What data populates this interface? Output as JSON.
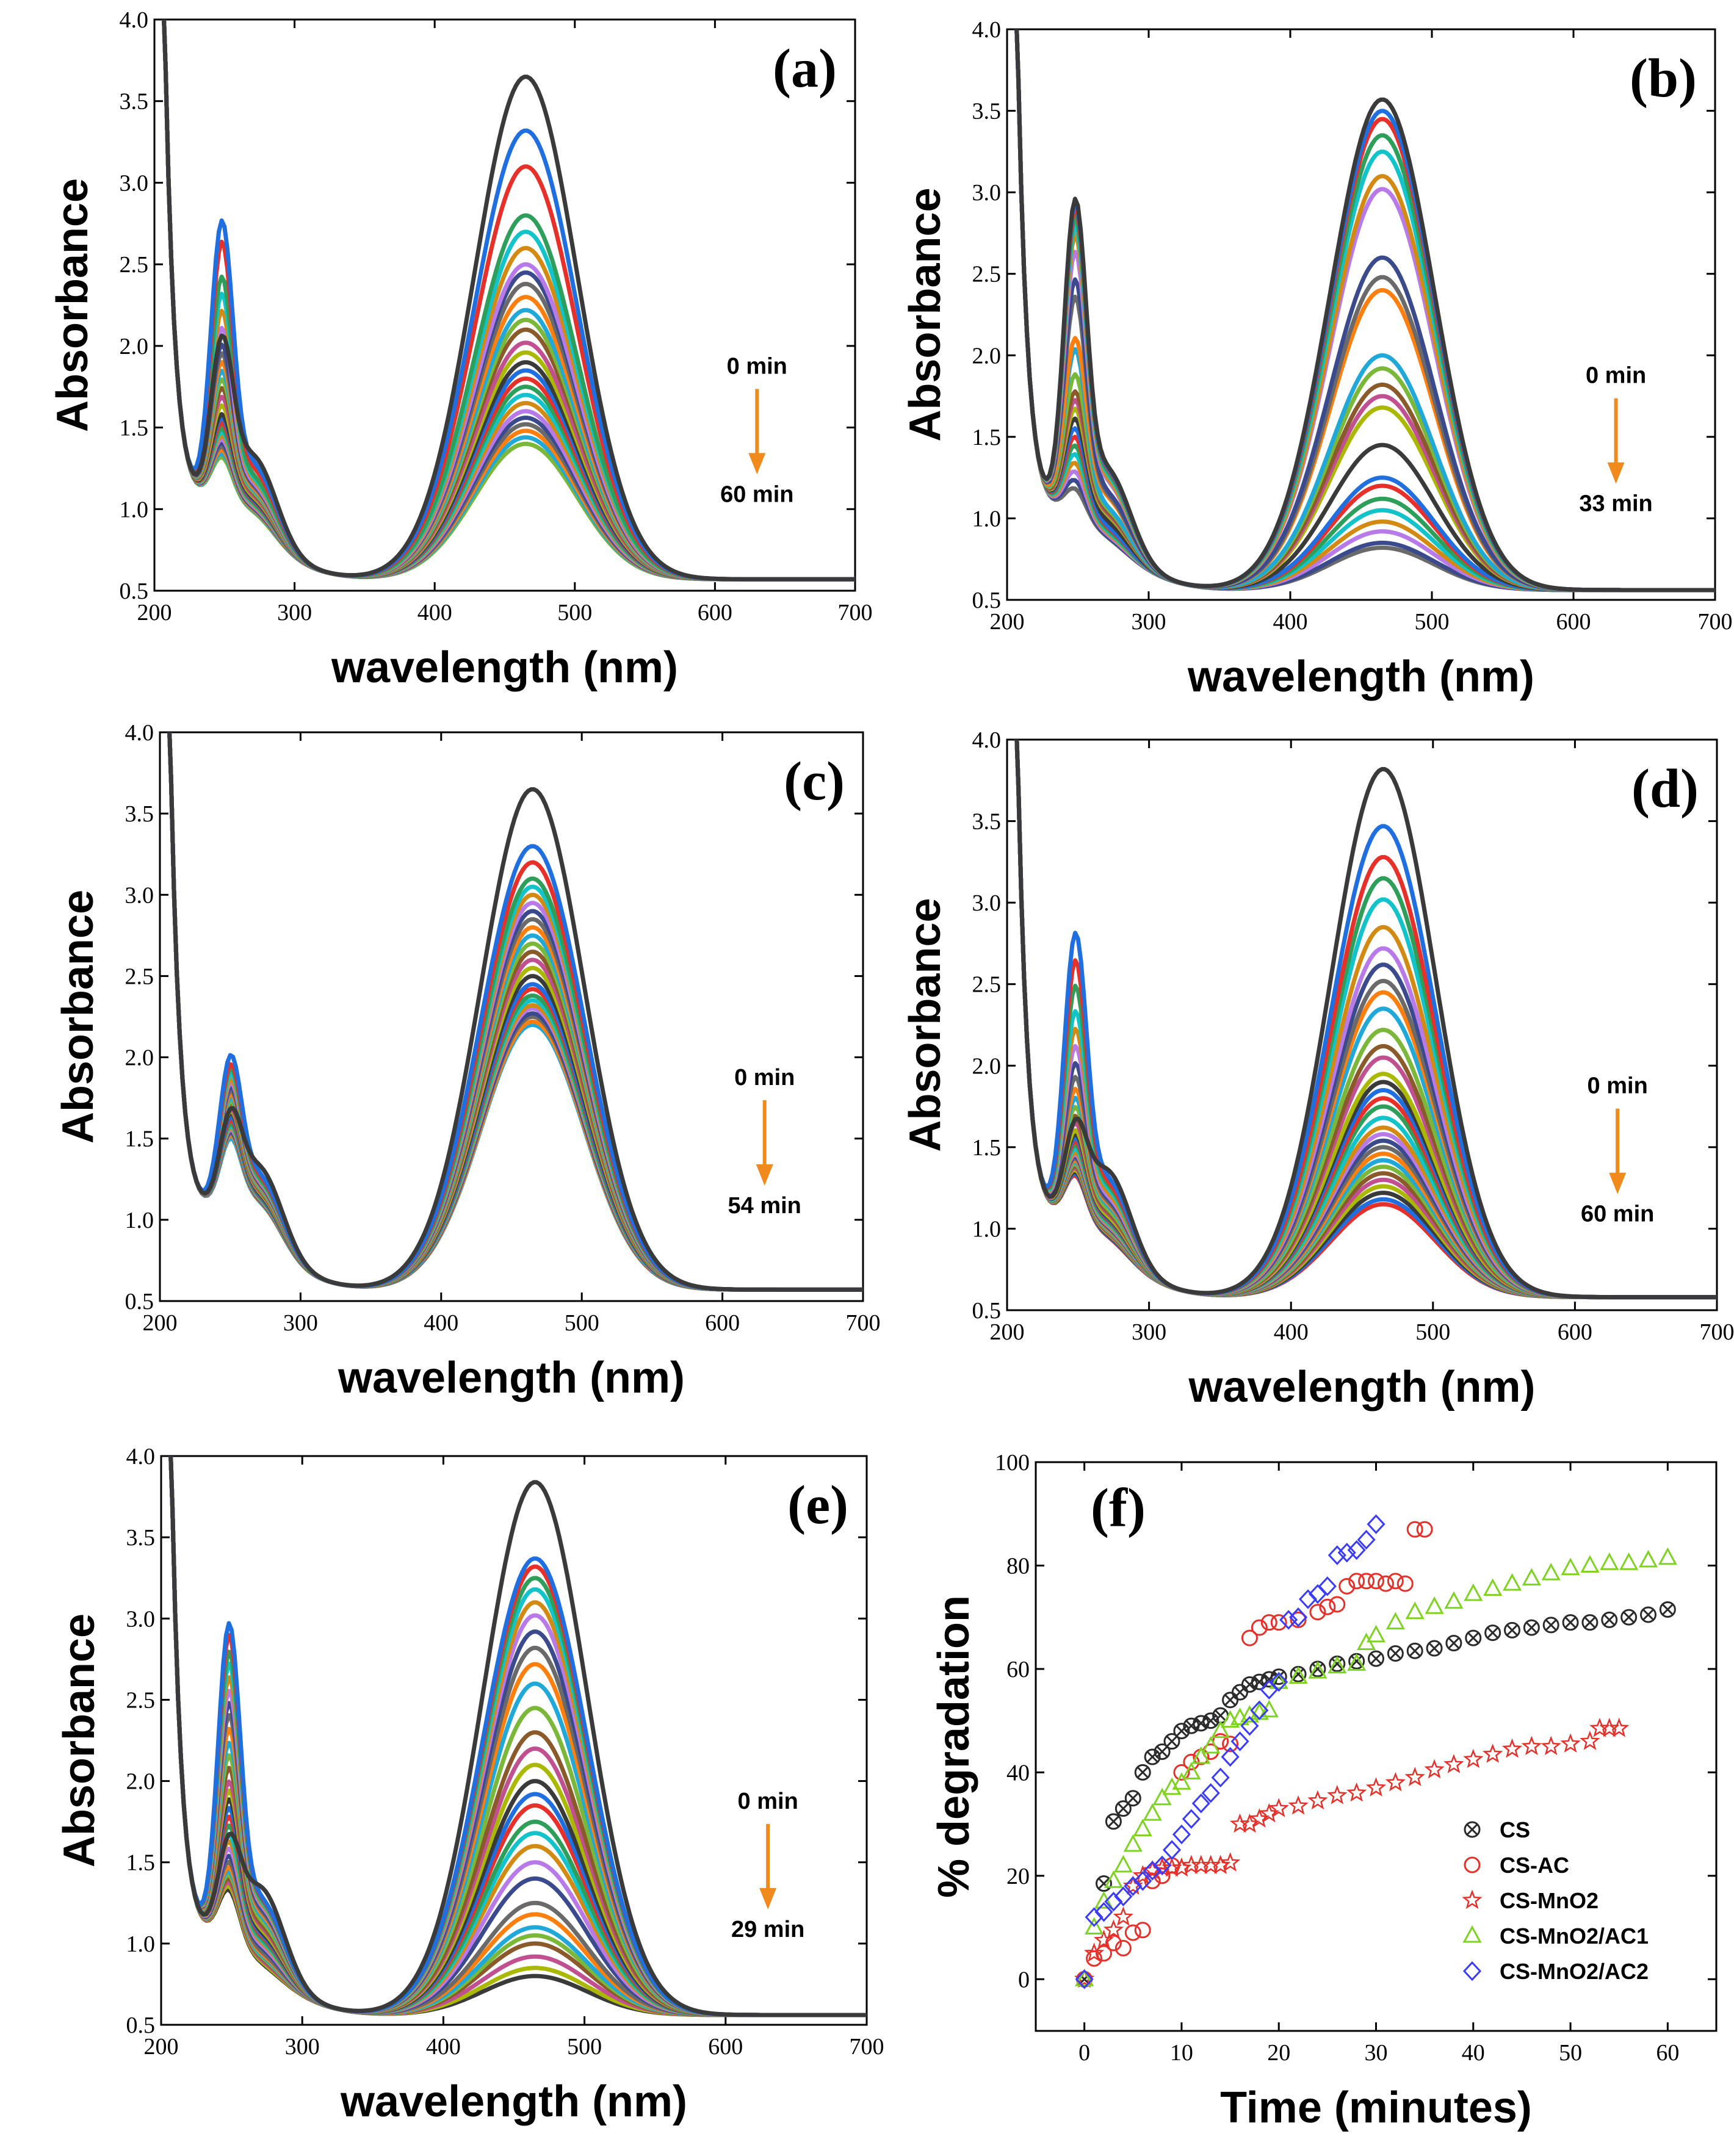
{
  "colors": {
    "arrow": "#f08a1c",
    "palette": [
      "#3a3a3a",
      "#1f6fe0",
      "#e8302a",
      "#2e9e5b",
      "#12c3c9",
      "#d38a12",
      "#b87ae8",
      "#3a4a8c",
      "#6a6a6a",
      "#ff7f0e",
      "#1fa8d8",
      "#7bb83a",
      "#8a5a2a",
      "#c05090",
      "#aab800"
    ]
  },
  "chart_data": [
    {
      "id": "a",
      "type": "line",
      "panel_label": "(a)",
      "xlabel": "wavelength (nm)",
      "ylabel": "Absorbance",
      "xlim": [
        200,
        700
      ],
      "ylim": [
        0.5,
        4.0
      ],
      "xticks": [
        "200",
        "300",
        "400",
        "500",
        "600",
        "700"
      ],
      "yticks": [
        "0.5",
        "1.0",
        "1.5",
        "2.0",
        "2.5",
        "3.0",
        "3.5",
        "4.0"
      ],
      "annotation_top": "0 min",
      "annotation_bottom": "60 min",
      "spectra": {
        "main_peak_x": 465,
        "main_peak_values": [
          3.65,
          3.32,
          3.1,
          2.8,
          2.7,
          2.6,
          2.5,
          2.45,
          2.38,
          2.3,
          2.22,
          2.16,
          2.1,
          2.02,
          1.96,
          1.9,
          1.85,
          1.8,
          1.75,
          1.7,
          1.65,
          1.6,
          1.56,
          1.52,
          1.48,
          1.44,
          1.4
        ],
        "uv_peak_x": 248,
        "uv_peak_values": [
          2.0,
          2.72,
          2.6,
          2.4,
          2.3,
          2.2,
          2.1,
          2.0,
          1.95,
          1.9,
          1.85,
          1.8,
          1.75,
          1.7,
          1.65,
          1.6,
          1.58,
          1.55,
          1.52,
          1.5,
          1.48,
          1.46,
          1.44,
          1.42,
          1.4,
          1.38,
          1.36
        ],
        "min_x": 340,
        "min_value": 0.75,
        "baseline": 0.57
      }
    },
    {
      "id": "b",
      "type": "line",
      "panel_label": "(b)",
      "xlabel": "wavelength (nm)",
      "ylabel": "Absorbance",
      "xlim": [
        200,
        700
      ],
      "ylim": [
        0.5,
        4.0
      ],
      "xticks": [
        "200",
        "300",
        "400",
        "500",
        "600",
        "700"
      ],
      "yticks": [
        "0.5",
        "1.0",
        "1.5",
        "2.0",
        "2.5",
        "3.0",
        "3.5",
        "4.0"
      ],
      "annotation_top": "0 min",
      "annotation_bottom": "33 min",
      "spectra": {
        "main_peak_x": 465,
        "main_peak_values": [
          3.57,
          3.5,
          3.45,
          3.35,
          3.25,
          3.1,
          3.02,
          2.6,
          2.48,
          2.4,
          2.0,
          1.92,
          1.82,
          1.75,
          1.68,
          1.45,
          1.25,
          1.2,
          1.12,
          1.05,
          0.98,
          0.92,
          0.85,
          0.82
        ],
        "uv_peak_x": 248,
        "uv_peak_values": [
          2.9,
          2.88,
          2.85,
          2.8,
          2.75,
          2.7,
          2.6,
          2.45,
          2.35,
          2.1,
          2.05,
          1.9,
          1.8,
          1.75,
          1.7,
          1.65,
          1.6,
          1.55,
          1.5,
          1.45,
          1.4,
          1.35,
          1.3,
          1.25
        ],
        "min_x": 340,
        "min_value": 0.68,
        "baseline": 0.56
      }
    },
    {
      "id": "c",
      "type": "line",
      "panel_label": "(c)",
      "xlabel": "wavelength (nm)",
      "ylabel": "Absorbance",
      "xlim": [
        200,
        700
      ],
      "ylim": [
        0.5,
        4.0
      ],
      "xticks": [
        "200",
        "300",
        "400",
        "500",
        "600",
        "700"
      ],
      "yticks": [
        "0.5",
        "1.0",
        "1.5",
        "2.0",
        "2.5",
        "3.0",
        "3.5",
        "4.0"
      ],
      "annotation_top": "0 min",
      "annotation_bottom": "54 min",
      "spectra": {
        "main_peak_x": 465,
        "main_peak_values": [
          3.65,
          3.3,
          3.2,
          3.1,
          3.05,
          3.0,
          2.95,
          2.9,
          2.85,
          2.8,
          2.75,
          2.7,
          2.65,
          2.6,
          2.55,
          2.5,
          2.45,
          2.42,
          2.38,
          2.35,
          2.32,
          2.3,
          2.27,
          2.25,
          2.22,
          2.2
        ],
        "uv_peak_x": 250,
        "uv_peak_values": [
          1.6,
          1.95,
          1.9,
          1.88,
          1.85,
          1.82,
          1.8,
          1.78,
          1.76,
          1.74,
          1.72,
          1.7,
          1.68,
          1.66,
          1.65,
          1.64,
          1.62,
          1.6,
          1.58,
          1.57,
          1.56,
          1.55,
          1.54,
          1.53,
          1.52,
          1.5
        ],
        "min_x": 340,
        "min_value": 0.72,
        "baseline": 0.57
      }
    },
    {
      "id": "d",
      "type": "line",
      "panel_label": "(d)",
      "xlabel": "wavelength (nm)",
      "ylabel": "Absorbance",
      "xlim": [
        200,
        700
      ],
      "ylim": [
        0.5,
        4.0
      ],
      "xticks": [
        "200",
        "300",
        "400",
        "500",
        "600",
        "700"
      ],
      "yticks": [
        "0.5",
        "1.0",
        "1.5",
        "2.0",
        "2.5",
        "3.0",
        "3.5",
        "4.0"
      ],
      "annotation_top": "0 min",
      "annotation_bottom": "60 min",
      "spectra": {
        "main_peak_x": 465,
        "main_peak_values": [
          3.82,
          3.47,
          3.28,
          3.15,
          3.02,
          2.85,
          2.72,
          2.62,
          2.52,
          2.45,
          2.35,
          2.22,
          2.12,
          2.05,
          1.95,
          1.9,
          1.85,
          1.8,
          1.75,
          1.68,
          1.62,
          1.58,
          1.54,
          1.5,
          1.46,
          1.42,
          1.38,
          1.34,
          1.3,
          1.26,
          1.22,
          1.18,
          1.15
        ],
        "uv_peak_x": 248,
        "uv_peak_values": [
          1.6,
          2.76,
          2.6,
          2.45,
          2.3,
          2.2,
          2.1,
          2.0,
          1.92,
          1.85,
          1.8,
          1.75,
          1.7,
          1.66,
          1.62,
          1.6,
          1.58,
          1.56,
          1.54,
          1.52,
          1.5,
          1.49,
          1.48,
          1.47,
          1.46,
          1.45,
          1.44,
          1.43,
          1.42,
          1.41,
          1.4,
          1.39,
          1.38
        ],
        "min_x": 342,
        "min_value": 0.7,
        "baseline": 0.58
      }
    },
    {
      "id": "e",
      "type": "line",
      "panel_label": "(e)",
      "xlabel": "wavelength (nm)",
      "ylabel": "Absorbance",
      "xlim": [
        200,
        700
      ],
      "ylim": [
        0.5,
        4.0
      ],
      "xticks": [
        "200",
        "300",
        "400",
        "500",
        "600",
        "700"
      ],
      "yticks": [
        "0.5",
        "1.0",
        "1.5",
        "2.0",
        "2.5",
        "3.0",
        "3.5",
        "4.0"
      ],
      "annotation_top": "0 min",
      "annotation_bottom": "29 min",
      "spectra": {
        "main_peak_x": 465,
        "main_peak_values": [
          3.84,
          3.37,
          3.32,
          3.25,
          3.18,
          3.1,
          3.02,
          2.92,
          2.82,
          2.72,
          2.6,
          2.45,
          2.3,
          2.2,
          2.1,
          2.0,
          1.92,
          1.85,
          1.75,
          1.68,
          1.6,
          1.5,
          1.4,
          1.25,
          1.18,
          1.1,
          1.05,
          1.0,
          0.92,
          0.85,
          0.8
        ],
        "uv_peak_x": 248,
        "uv_peak_values": [
          1.6,
          2.92,
          2.85,
          2.75,
          2.68,
          2.6,
          2.52,
          2.45,
          2.38,
          2.3,
          2.22,
          2.15,
          2.08,
          2.0,
          1.95,
          1.9,
          1.85,
          1.8,
          1.75,
          1.7,
          1.66,
          1.62,
          1.58,
          1.55,
          1.52,
          1.5,
          1.48,
          1.46,
          1.44,
          1.42,
          1.4
        ],
        "min_x": 340,
        "min_value": 0.68,
        "baseline": 0.56
      }
    },
    {
      "id": "f",
      "type": "scatter",
      "panel_label": "(f)",
      "xlabel": "Time (minutes)",
      "ylabel": "% degradation",
      "xlim": [
        -5,
        65
      ],
      "ylim": [
        -10,
        100
      ],
      "xticks": [
        "0",
        "10",
        "20",
        "30",
        "40",
        "50",
        "60"
      ],
      "yticks": [
        "0",
        "20",
        "40",
        "60",
        "80",
        "100"
      ],
      "legend_position": "bottom-right",
      "series": [
        {
          "name": "CS",
          "marker": "circle-x",
          "color": "#2b2b2b",
          "x": [
            0,
            2,
            3,
            4,
            5,
            6,
            7,
            8,
            9,
            10,
            11,
            12,
            13,
            14,
            15,
            16,
            17,
            18,
            19,
            20,
            22,
            24,
            26,
            28,
            30,
            32,
            34,
            36,
            38,
            40,
            42,
            44,
            46,
            48,
            50,
            52,
            54,
            56,
            58,
            60
          ],
          "y": [
            0,
            18.5,
            30.5,
            33,
            35,
            40,
            43,
            44,
            46,
            48,
            49,
            49.5,
            50,
            51,
            54,
            55.5,
            57,
            57.5,
            58,
            58.5,
            59,
            60,
            61,
            61.5,
            62,
            63,
            63.5,
            64,
            65,
            66,
            67,
            67.5,
            68,
            68.5,
            69,
            69,
            69.5,
            70,
            70.5,
            71.5
          ]
        },
        {
          "name": "CS-AC",
          "marker": "circle",
          "color": "#e8302a",
          "x": [
            0,
            1,
            2,
            3,
            4,
            5,
            6,
            7,
            8,
            9,
            10,
            11,
            12,
            13,
            14,
            15,
            17,
            18,
            19,
            20,
            22,
            24,
            25,
            26,
            27,
            28,
            29,
            30,
            31,
            32,
            33,
            34,
            35
          ],
          "y": [
            0,
            4,
            5,
            7,
            6,
            9,
            9.5,
            19,
            20,
            22,
            40,
            42,
            43,
            44,
            46,
            45.5,
            66,
            68,
            69,
            69,
            69.5,
            71,
            72,
            72.5,
            76,
            77,
            77,
            77,
            76.5,
            77,
            76.5,
            87,
            87
          ]
        },
        {
          "name": "CS-MnO2",
          "marker": "star",
          "color": "#e8302a",
          "x": [
            0,
            1,
            2,
            3,
            4,
            5,
            6,
            7,
            8,
            9,
            10,
            11,
            12,
            13,
            14,
            15,
            16,
            17,
            18,
            19,
            20,
            22,
            24,
            26,
            28,
            30,
            32,
            34,
            36,
            38,
            40,
            42,
            44,
            46,
            48,
            50,
            52,
            53,
            54,
            55
          ],
          "y": [
            0,
            5,
            7.5,
            9.5,
            12,
            18,
            20,
            21,
            21.5,
            21.5,
            21.5,
            22,
            22,
            22,
            22,
            22.5,
            30,
            30,
            31,
            32,
            33,
            33.5,
            34.5,
            35.5,
            36,
            37,
            38,
            39,
            40.5,
            41.5,
            42.5,
            43.5,
            44.5,
            45,
            45,
            45.5,
            46,
            48.5,
            48.5,
            48.5
          ]
        },
        {
          "name": "CS-MnO2/AC1",
          "marker": "triangle",
          "color": "#7ed321",
          "x": [
            0,
            1,
            2,
            3,
            4,
            5,
            6,
            7,
            8,
            9,
            10,
            11,
            12,
            13,
            14,
            15,
            16,
            17,
            18,
            19,
            20,
            22,
            24,
            26,
            28,
            29,
            30,
            32,
            34,
            36,
            38,
            40,
            42,
            44,
            46,
            48,
            50,
            52,
            54,
            56,
            58,
            60
          ],
          "y": [
            0,
            10,
            15,
            19,
            22,
            26,
            29,
            32,
            35,
            37,
            38,
            40,
            43,
            45,
            48,
            50,
            50.5,
            51,
            51.5,
            52,
            57.5,
            58.5,
            59.5,
            60.5,
            61,
            65,
            66.5,
            69,
            71,
            72,
            73,
            74.5,
            75.5,
            76.5,
            77.5,
            78.5,
            79.5,
            80,
            80.5,
            80.5,
            81,
            81.5
          ]
        },
        {
          "name": "CS-MnO2/AC2",
          "marker": "diamond",
          "color": "#3b3bff",
          "x": [
            0,
            1,
            2,
            3,
            4,
            5,
            6,
            7,
            8,
            9,
            10,
            11,
            12,
            13,
            14,
            15,
            16,
            17,
            18,
            19,
            20,
            21,
            22,
            23,
            24,
            25,
            26,
            27,
            28,
            29,
            30
          ],
          "y": [
            0,
            12,
            13,
            15,
            16,
            18,
            19,
            21,
            22,
            25,
            28,
            31,
            34,
            36,
            39,
            43,
            46,
            49,
            52,
            56,
            57.5,
            69.5,
            70,
            73.5,
            74.5,
            76,
            82,
            82.5,
            83,
            85,
            88
          ]
        }
      ]
    }
  ]
}
